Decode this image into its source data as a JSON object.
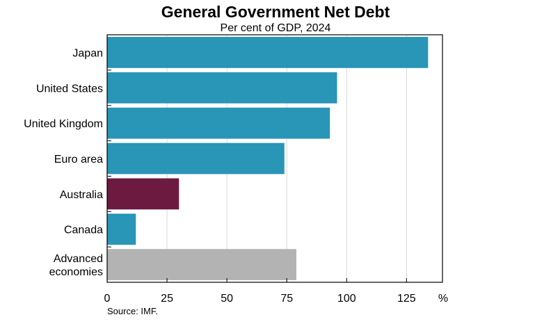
{
  "chart_data": {
    "type": "bar",
    "orientation": "horizontal",
    "title": "General Government Net Debt",
    "subtitle": "Per cent of GDP, 2024",
    "categories": [
      "Japan",
      "United States",
      "United Kingdom",
      "Euro area",
      "Australia",
      "Canada",
      "Advanced economies"
    ],
    "values": [
      134,
      96,
      93,
      74,
      30,
      12,
      79
    ],
    "bar_colors": [
      "#2995b7",
      "#2995b7",
      "#2995b7",
      "#2995b7",
      "#6c1a40",
      "#2995b7",
      "#b3b3b3"
    ],
    "xlim": [
      0,
      140
    ],
    "xticks": [
      "0",
      "25",
      "50",
      "75",
      "100",
      "125"
    ],
    "x_unit": "%",
    "grid": "vertical",
    "source": "Source:  IMF."
  }
}
